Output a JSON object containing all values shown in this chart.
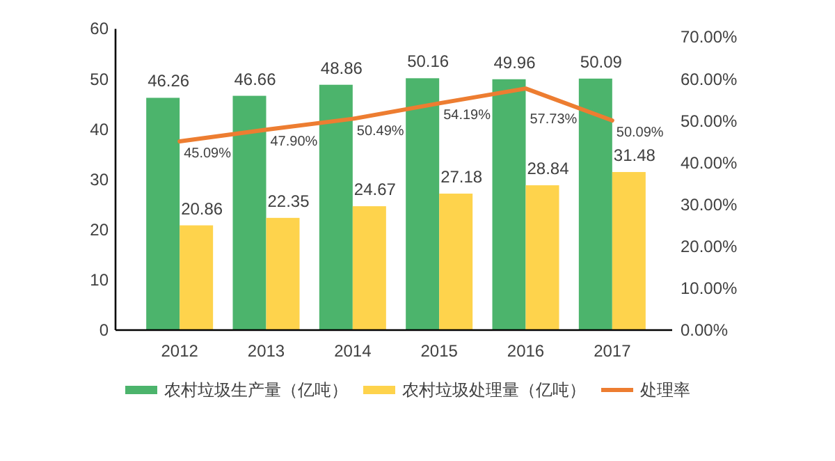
{
  "chart_data": {
    "type": "bar",
    "categories": [
      "2012",
      "2013",
      "2014",
      "2015",
      "2016",
      "2017"
    ],
    "series": [
      {
        "name": "农村垃圾生产量（亿吨）",
        "color": "#4cb46c",
        "values": [
          46.26,
          46.66,
          48.86,
          50.16,
          49.96,
          50.09
        ],
        "value_labels": [
          "46.26",
          "46.66",
          "48.86",
          "50.16",
          "49.96",
          "50.09"
        ]
      },
      {
        "name": "农村垃圾处理量（亿吨）",
        "color": "#fed34c",
        "values": [
          20.86,
          22.35,
          24.67,
          27.18,
          28.84,
          31.48
        ],
        "value_labels": [
          "20.86",
          "22.35",
          "24.67",
          "27.18",
          "28.84",
          "31.48"
        ]
      },
      {
        "name": "处理率",
        "type": "line",
        "axis": "y2",
        "color": "#ed7d31",
        "values": [
          45.09,
          47.9,
          50.49,
          54.19,
          57.73,
          50.09
        ],
        "value_labels": [
          "45.09%",
          "47.90%",
          "50.49%",
          "54.19%",
          "57.73%",
          "50.09%"
        ]
      }
    ],
    "ylim": [
      0,
      60
    ],
    "yticks": [
      0,
      10,
      20,
      30,
      40,
      50,
      60
    ],
    "y2lim": [
      0,
      72
    ],
    "y2ticks": [
      {
        "value": 0,
        "label": "0.00%"
      },
      {
        "value": 10,
        "label": "10.00%"
      },
      {
        "value": 20,
        "label": "20.00%"
      },
      {
        "value": 30,
        "label": "30.00%"
      },
      {
        "value": 40,
        "label": "40.00%"
      },
      {
        "value": 50,
        "label": "50.00%"
      },
      {
        "value": 60,
        "label": "60.00%"
      },
      {
        "value": 70,
        "label": "70.00%"
      }
    ],
    "legend": "bottom"
  }
}
